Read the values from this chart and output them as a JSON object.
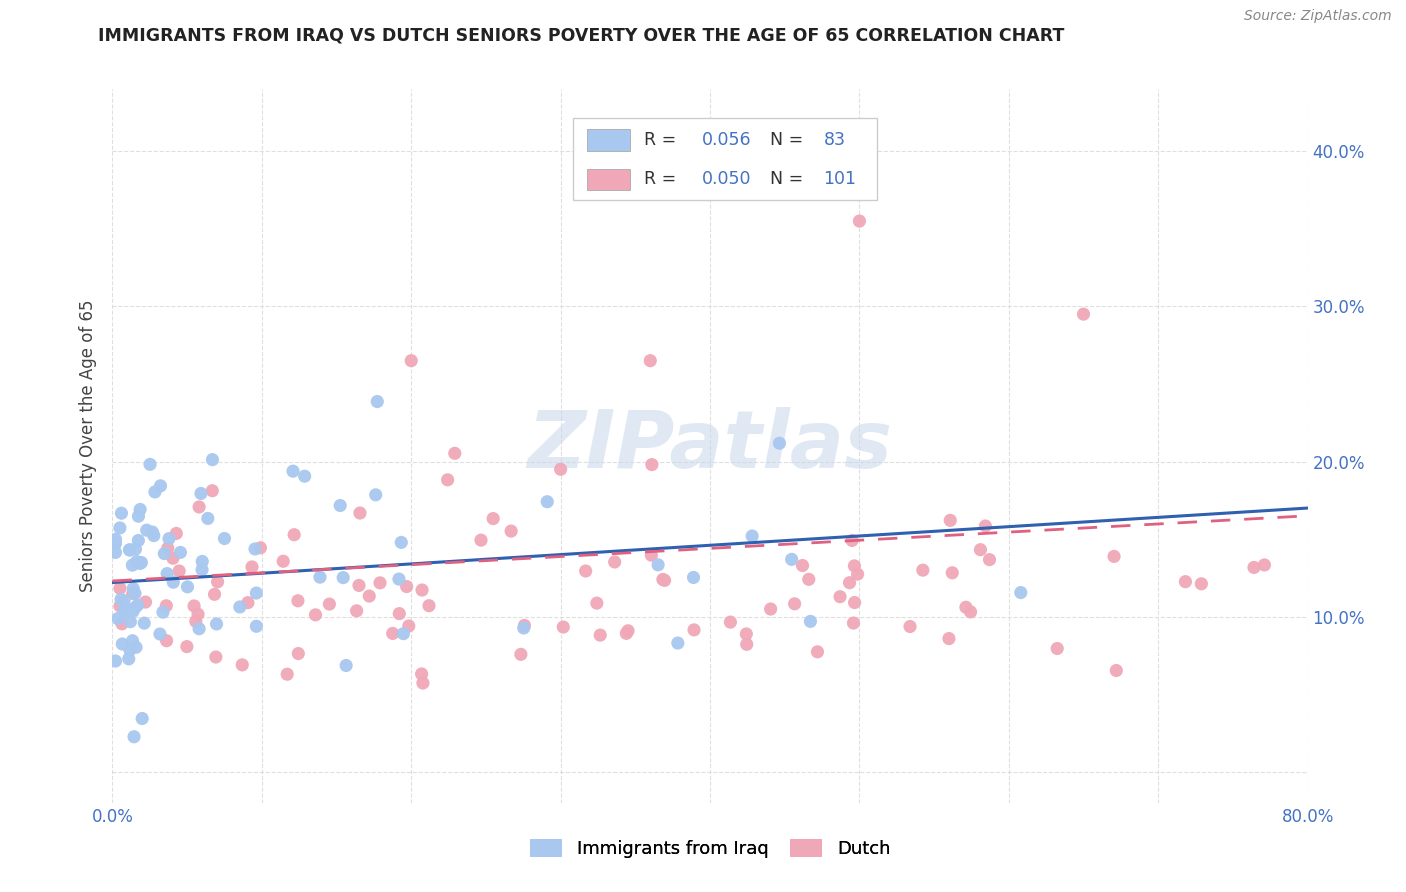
{
  "title": "IMMIGRANTS FROM IRAQ VS DUTCH SENIORS POVERTY OVER THE AGE OF 65 CORRELATION CHART",
  "source_text": "Source: ZipAtlas.com",
  "ylabel": "Seniors Poverty Over the Age of 65",
  "xlim": [
    0.0,
    0.8
  ],
  "ylim": [
    -0.02,
    0.44
  ],
  "xtick_positions": [
    0.0,
    0.1,
    0.2,
    0.3,
    0.4,
    0.5,
    0.6,
    0.7,
    0.8
  ],
  "xticklabels": [
    "0.0%",
    "",
    "",
    "",
    "",
    "",
    "",
    "",
    "80.0%"
  ],
  "ytick_positions": [
    0.0,
    0.1,
    0.2,
    0.3,
    0.4
  ],
  "yticklabels_right": [
    "",
    "10.0%",
    "20.0%",
    "30.0%",
    "40.0%"
  ],
  "legend_iraq_r": "0.056",
  "legend_iraq_n": "83",
  "legend_dutch_r": "0.050",
  "legend_dutch_n": "101",
  "iraq_color": "#a8c8f0",
  "dutch_color": "#f0a8b8",
  "iraq_line_color": "#3060b0",
  "dutch_line_color": "#e06080",
  "blue_label_color": "#4472c4",
  "watermark_color": "#c8d8ea",
  "background_color": "#ffffff",
  "grid_color": "#d8d8d8",
  "title_color": "#222222",
  "ylabel_color": "#444444",
  "source_color": "#888888"
}
